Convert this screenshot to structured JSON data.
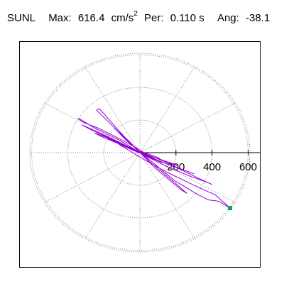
{
  "header": {
    "station": "SUNL",
    "max_label": "Max:",
    "max_value": "616.4",
    "max_unit": "cm/s",
    "max_unit_exp": "2",
    "per_label": "Per:",
    "per_value": "0.110 s",
    "ang_label": "Ang:",
    "ang_value": "-38.1"
  },
  "chart_data": {
    "type": "line",
    "title": "SUNL   Max:  616.4 cm/s2  Per:  0.110 s   Ang: -38.1",
    "axis": "polar",
    "ring_values": [
      200,
      400,
      600
    ],
    "tick_labels": [
      "200",
      "400",
      "600"
    ],
    "r_max": 610,
    "grid": "dotted",
    "spoke_angles_deg": [
      0,
      30,
      60,
      90,
      120,
      150,
      180,
      210,
      240,
      270,
      300,
      330
    ],
    "trace_color": "#9400D3",
    "end_marker_color": "#00A86B",
    "orbit_points": [
      [
        0,
        0
      ],
      [
        -35,
        25
      ],
      [
        -120,
        80
      ],
      [
        -240,
        145
      ],
      [
        -330,
        205
      ],
      [
        -345,
        210
      ],
      [
        -310,
        185
      ],
      [
        -230,
        150
      ],
      [
        -130,
        95
      ],
      [
        -20,
        30
      ],
      [
        80,
        -40
      ],
      [
        210,
        -95
      ],
      [
        340,
        -165
      ],
      [
        400,
        -195
      ],
      [
        380,
        -185
      ],
      [
        280,
        -145
      ],
      [
        150,
        -85
      ],
      [
        40,
        -25
      ],
      [
        -70,
        40
      ],
      [
        -200,
        110
      ],
      [
        -300,
        160
      ],
      [
        -320,
        170
      ],
      [
        -270,
        140
      ],
      [
        -170,
        90
      ],
      [
        -60,
        35
      ],
      [
        50,
        -30
      ],
      [
        170,
        -75
      ],
      [
        275,
        -120
      ],
      [
        300,
        -130
      ],
      [
        250,
        -110
      ],
      [
        140,
        -65
      ],
      [
        30,
        -15
      ],
      [
        -80,
        45
      ],
      [
        -200,
        100
      ],
      [
        -250,
        120
      ],
      [
        -215,
        100
      ],
      [
        -130,
        60
      ],
      [
        -30,
        15
      ],
      [
        60,
        -20
      ],
      [
        150,
        -60
      ],
      [
        210,
        -80
      ],
      [
        190,
        -70
      ],
      [
        110,
        -40
      ],
      [
        30,
        -10
      ],
      [
        -50,
        30
      ],
      [
        -150,
        75
      ],
      [
        -175,
        85
      ],
      [
        -130,
        60
      ],
      [
        -60,
        25
      ],
      [
        10,
        -5
      ],
      [
        80,
        -30
      ],
      [
        120,
        -45
      ],
      [
        100,
        -30
      ],
      [
        40,
        -5
      ],
      [
        -20,
        15
      ],
      [
        -80,
        45
      ],
      [
        -100,
        50
      ],
      [
        -60,
        25
      ],
      [
        0,
        0
      ],
      [
        50,
        -20
      ],
      [
        70,
        -30
      ],
      [
        40,
        -10
      ],
      [
        -10,
        10
      ],
      [
        -50,
        25
      ],
      [
        -40,
        15
      ],
      [
        0,
        0
      ],
      [
        30,
        -15
      ],
      [
        25,
        -5
      ],
      [
        -10,
        10
      ],
      [
        -30,
        20
      ],
      [
        -20,
        5
      ],
      [
        10,
        -5
      ],
      [
        20,
        -10
      ],
      [
        0,
        0
      ],
      [
        -240,
        260
      ],
      [
        -225,
        270
      ],
      [
        -80,
        90
      ],
      [
        60,
        -60
      ],
      [
        200,
        -190
      ],
      [
        260,
        -250
      ],
      [
        220,
        -220
      ],
      [
        80,
        -90
      ],
      [
        -60,
        70
      ],
      [
        -140,
        150
      ],
      [
        -80,
        80
      ],
      [
        50,
        -40
      ],
      [
        190,
        -170
      ],
      [
        310,
        -250
      ],
      [
        380,
        -290
      ],
      [
        420,
        -295
      ],
      [
        440,
        -300
      ],
      [
        470,
        -320
      ],
      [
        500,
        -340
      ],
      [
        480,
        -320
      ],
      [
        420,
        -260
      ],
      [
        300,
        -200
      ],
      [
        150,
        -120
      ],
      [
        20,
        -40
      ],
      [
        -100,
        40
      ],
      [
        -140,
        70
      ],
      [
        -60,
        30
      ],
      [
        40,
        -20
      ],
      [
        120,
        -60
      ],
      [
        70,
        -35
      ],
      [
        0,
        0
      ]
    ],
    "end_point": [
      500,
      -340
    ]
  }
}
